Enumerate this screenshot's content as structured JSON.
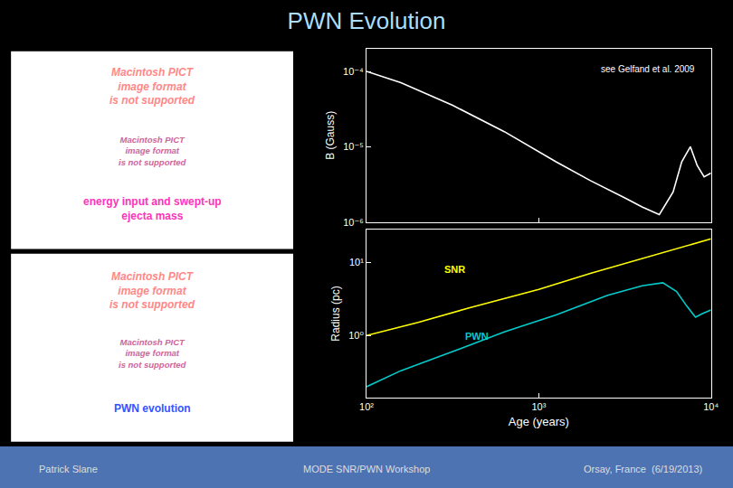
{
  "title": "PWN Evolution",
  "title_color": "#AADDFF",
  "annotations": [
    {
      "text": "Patrick Slane",
      "color": "#DDDDDD"
    },
    {
      "text": "MODE SNR/PWN Workshop",
      "color": "#DDDDDD"
    },
    {
      "text": "Orsay, France  (6/19/2013)",
      "color": "#DDDDDD"
    },
    {
      "text": "Macintosh PICT\nimage format\nis not supported",
      "color": "#FF8888"
    },
    {
      "text": "Macintosh PICT\nimage format\nis not supported",
      "color": "#CC6699"
    },
    {
      "text": "energy input and swept-up\nejecta mass",
      "color": "#FF33BB"
    },
    {
      "text": "Macintosh PICT\nimage format\nis not supported",
      "color": "#FF8888"
    },
    {
      "text": "Macintosh PICT\nimage format\nis not supported",
      "color": "#CC6699"
    },
    {
      "text": "PWN evolution",
      "color": "#3355FF"
    }
  ],
  "chart_data": [
    {
      "type": "line",
      "log": true,
      "grid": false,
      "tick_labels": "y",
      "ylabel": "B (Gauss)",
      "xlim": [
        100,
        10000
      ],
      "ylim": [
        1e-06,
        0.0001995262315
      ],
      "xticks": [
        100,
        1000,
        10000
      ],
      "yticks": [
        {
          "value": 1e-06,
          "label": "10⁻⁶"
        },
        {
          "value": 1e-05,
          "label": "10⁻⁵"
        },
        {
          "value": 0.0001,
          "label": "10⁻⁴"
        }
      ],
      "annotations": [
        {
          "text": "see Gelfand et al. 2009",
          "color": "#FFFFFF"
        }
      ],
      "series": [
        {
          "color": "#FFFFFF",
          "x": [
            100,
            158.4893192,
            316.227766,
            630.9573445,
            1258.925412,
            1995.262315,
            3162.27766,
            3981.071706,
            5011.872336,
            6025.595861,
            6760.829754,
            7585.77575,
            8317.637711,
            9120.108394,
            10000
          ],
          "values": [
            0.0001,
            7.079457844e-05,
            3.548133892e-05,
            1.584893192e-05,
            6.309573445e-06,
            3.548133892e-06,
            2.089296131e-06,
            1.584893192e-06,
            1.258925412e-06,
            2.511886432e-06,
            6.309573445e-06,
            1e-05,
            5.623413252e-06,
            3.981071706e-06,
            4.466835922e-06
          ]
        }
      ]
    },
    {
      "type": "line",
      "log": true,
      "grid": false,
      "xlabel": "Age (years)",
      "ylabel": "Radius (pc)",
      "xlim": [
        100,
        10000
      ],
      "ylim": [
        0.1412537545,
        28.18382931
      ],
      "xticks": [
        {
          "value": 100,
          "label": "10²"
        },
        {
          "value": 1000,
          "label": "10³"
        },
        {
          "value": 10000,
          "label": "10⁴"
        }
      ],
      "yticks": [
        {
          "value": 1,
          "label": "10⁰"
        },
        {
          "value": 10,
          "label": "10¹"
        }
      ],
      "series": [
        {
          "name": "SNR",
          "color": "#FFFF00",
          "x": [
            100,
            199.5262315,
            398.1071706,
            1000,
            1995.262315,
            3981.071706,
            6309.573445,
            10000
          ],
          "values": [
            1,
            1.513561248,
            2.398832919,
            4.265795188,
            7.079457844,
            11.22018454,
            15.13561248,
            20.89296131
          ]
        },
        {
          "name": "PWN",
          "color": "#00CCCC",
          "x": [
            100,
            158.4893192,
            316.227766,
            630.9573445,
            1258.925412,
            2511.886432,
            3981.071706,
            5248.074602,
            6309.573445,
            7244.359601,
            8128.305162,
            8912.509381,
            10000
          ],
          "values": [
            0.1995262315,
            0.3311311215,
            0.6025595861,
            1.122018454,
            1.905460718,
            3.548133892,
            4.786300923,
            5.248074602,
            3.981071706,
            2.511886432,
            1.77827941,
            1.995262315,
            2.238721139
          ]
        }
      ]
    }
  ]
}
